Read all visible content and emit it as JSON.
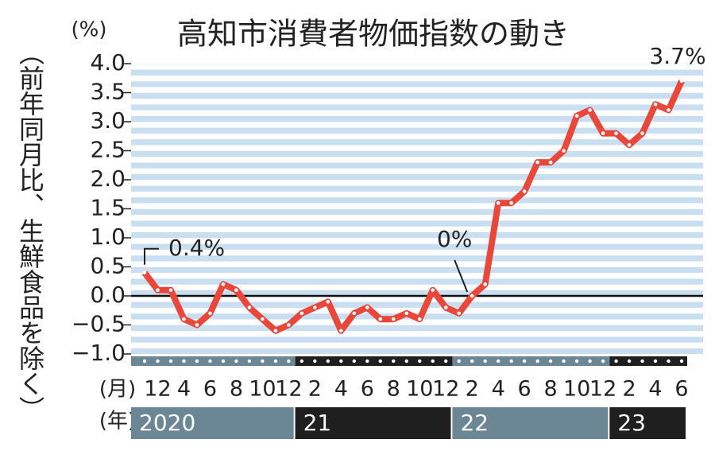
{
  "chart_data": {
    "type": "line",
    "title": "高知市消費者物価指数の動き",
    "y_label": "（前年同月比、生鮮食品を除く）",
    "y_unit": "(%)",
    "x_unit": "(月)",
    "year_unit": "(年)",
    "categories": [
      null,
      "12",
      null,
      "4",
      null,
      "6",
      null,
      "8",
      null,
      "10",
      null,
      "12",
      null,
      "2",
      null,
      "4",
      null,
      "6",
      null,
      "8",
      null,
      "10",
      null,
      "12",
      null,
      "2",
      null,
      "4",
      null,
      "6",
      null,
      "8",
      null,
      "10",
      null,
      "12",
      null,
      "2",
      null,
      "4",
      null,
      "6"
    ],
    "years": [
      "2020",
      "21",
      "22",
      "23"
    ],
    "series": [
      {
        "name": null,
        "color": "#e8473a",
        "values": [
          0.4,
          0.1,
          0.1,
          -0.4,
          -0.5,
          -0.3,
          0.2,
          0.1,
          -0.2,
          -0.4,
          -0.6,
          -0.5,
          -0.3,
          -0.2,
          -0.1,
          -0.6,
          -0.3,
          -0.2,
          -0.4,
          -0.4,
          -0.3,
          -0.4,
          0.1,
          -0.2,
          -0.3,
          0.0,
          0.2,
          1.6,
          1.6,
          1.8,
          2.3,
          2.3,
          2.5,
          3.1,
          3.2,
          2.8,
          2.8,
          2.6,
          2.8,
          3.3,
          3.2,
          3.7
        ]
      }
    ],
    "annotations": [
      {
        "text": "0.4%",
        "index": 0
      },
      {
        "text": "0%",
        "index": 25
      },
      {
        "text": "3.7%",
        "index": 41
      }
    ],
    "ylim": [
      -1.0,
      4.0
    ],
    "yticks": [
      {
        "value": 4.0,
        "label": "4.0"
      },
      {
        "value": 3.5,
        "label": "3.5"
      },
      {
        "value": 3.0,
        "label": "3.0"
      },
      {
        "value": 2.5,
        "label": "2.5"
      },
      {
        "value": 2.0,
        "label": "2.0"
      },
      {
        "value": 1.5,
        "label": "1.5"
      },
      {
        "value": 1.0,
        "label": "1.0"
      },
      {
        "value": 0.5,
        "label": "0.5"
      },
      {
        "value": 0,
        "label": "0.0"
      },
      {
        "value": -0.5,
        "label": "−0.5"
      },
      {
        "value": -1.0,
        "label": "−1.0"
      }
    ]
  }
}
